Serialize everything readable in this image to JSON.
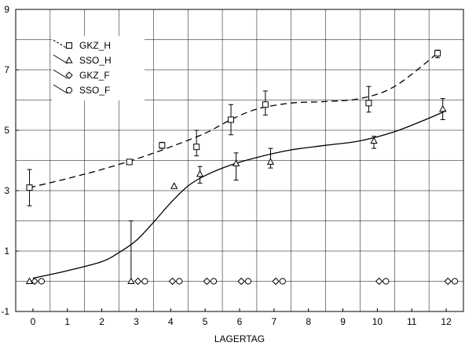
{
  "chart_data": {
    "type": "scatter",
    "xlabel": "LAGERTAG",
    "ylabel": "",
    "xlim": [
      -0.5,
      12.5
    ],
    "ylim": [
      -1,
      9
    ],
    "x_ticks": [
      0,
      1,
      2,
      3,
      4,
      5,
      6,
      7,
      8,
      9,
      10,
      11,
      12
    ],
    "y_ticks": [
      -1,
      1,
      3,
      5,
      7,
      9
    ],
    "grid": true,
    "legend_position": "top-left",
    "series": [
      {
        "name": "GKZ_H",
        "marker": "square",
        "line": "dashed",
        "color": "#000000",
        "points": [
          {
            "x": -0.1,
            "y": 3.1,
            "err_low": 0.6,
            "err_high": 0.6
          },
          {
            "x": 2.8,
            "y": 3.95,
            "err_low": 0,
            "err_high": 0
          },
          {
            "x": 3.75,
            "y": 4.5,
            "err_low": 0.1,
            "err_high": 0.1
          },
          {
            "x": 4.75,
            "y": 4.45,
            "err_low": 0.3,
            "err_high": 0.55
          },
          {
            "x": 5.75,
            "y": 5.35,
            "err_low": 0.5,
            "err_high": 0.5
          },
          {
            "x": 6.75,
            "y": 5.85,
            "err_low": 0.35,
            "err_high": 0.45
          },
          {
            "x": 9.75,
            "y": 5.9,
            "err_low": 0.3,
            "err_high": 0.55
          },
          {
            "x": 11.75,
            "y": 7.55,
            "err_low": 0.15,
            "err_high": 0.1
          }
        ],
        "fit_curve": [
          [
            -0.1,
            3.1
          ],
          [
            1,
            3.4
          ],
          [
            2,
            3.7
          ],
          [
            3,
            4.05
          ],
          [
            4,
            4.45
          ],
          [
            5,
            4.9
          ],
          [
            5.75,
            5.35
          ],
          [
            6.5,
            5.7
          ],
          [
            7.5,
            5.9
          ],
          [
            8.5,
            5.95
          ],
          [
            9.5,
            6.05
          ],
          [
            10.5,
            6.45
          ],
          [
            11.75,
            7.55
          ]
        ]
      },
      {
        "name": "SSO_H",
        "marker": "triangle",
        "line": "solid",
        "color": "#000000",
        "points": [
          {
            "x": -0.1,
            "y": 0.0,
            "err_low": 0,
            "err_high": 0
          },
          {
            "x": 2.85,
            "y": 0.0,
            "err_low": 0,
            "err_high": 2.0
          },
          {
            "x": 4.1,
            "y": 3.15,
            "err_low": 0,
            "err_high": 0
          },
          {
            "x": 4.85,
            "y": 3.55,
            "err_low": 0.3,
            "err_high": 0.25
          },
          {
            "x": 5.9,
            "y": 3.9,
            "err_low": 0.55,
            "err_high": 0.35
          },
          {
            "x": 6.9,
            "y": 3.95,
            "err_low": 0.2,
            "err_high": 0.45
          },
          {
            "x": 9.9,
            "y": 4.65,
            "err_low": 0.25,
            "err_high": 0.15
          },
          {
            "x": 11.9,
            "y": 5.7,
            "err_low": 0.35,
            "err_high": 0.35
          }
        ],
        "fit_curve": [
          [
            0,
            0.1
          ],
          [
            1,
            0.35
          ],
          [
            2,
            0.65
          ],
          [
            2.5,
            0.95
          ],
          [
            3,
            1.35
          ],
          [
            3.5,
            1.95
          ],
          [
            4,
            2.6
          ],
          [
            4.5,
            3.15
          ],
          [
            5,
            3.5
          ],
          [
            5.75,
            3.85
          ],
          [
            6.5,
            4.1
          ],
          [
            7.5,
            4.35
          ],
          [
            8.5,
            4.5
          ],
          [
            9.5,
            4.65
          ],
          [
            10.5,
            4.95
          ],
          [
            11.5,
            5.4
          ],
          [
            12,
            5.65
          ]
        ]
      },
      {
        "name": "GKZ_F",
        "marker": "diamond",
        "line": "solid",
        "color": "#000000",
        "points": [
          {
            "x": 0.05,
            "y": 0.0
          },
          {
            "x": 3.05,
            "y": 0.0
          },
          {
            "x": 4.05,
            "y": 0.0
          },
          {
            "x": 5.05,
            "y": 0.0
          },
          {
            "x": 6.05,
            "y": 0.0
          },
          {
            "x": 7.05,
            "y": 0.0
          },
          {
            "x": 10.05,
            "y": 0.0
          },
          {
            "x": 12.05,
            "y": 0.0
          }
        ]
      },
      {
        "name": "SSO_F",
        "marker": "circle",
        "line": "solid",
        "color": "#000000",
        "points": [
          {
            "x": 0.25,
            "y": 0.0
          },
          {
            "x": 3.25,
            "y": 0.0
          },
          {
            "x": 4.25,
            "y": 0.0
          },
          {
            "x": 5.25,
            "y": 0.0
          },
          {
            "x": 6.25,
            "y": 0.0
          },
          {
            "x": 7.25,
            "y": 0.0
          },
          {
            "x": 10.25,
            "y": 0.0
          },
          {
            "x": 12.25,
            "y": 0.0
          }
        ]
      }
    ]
  }
}
